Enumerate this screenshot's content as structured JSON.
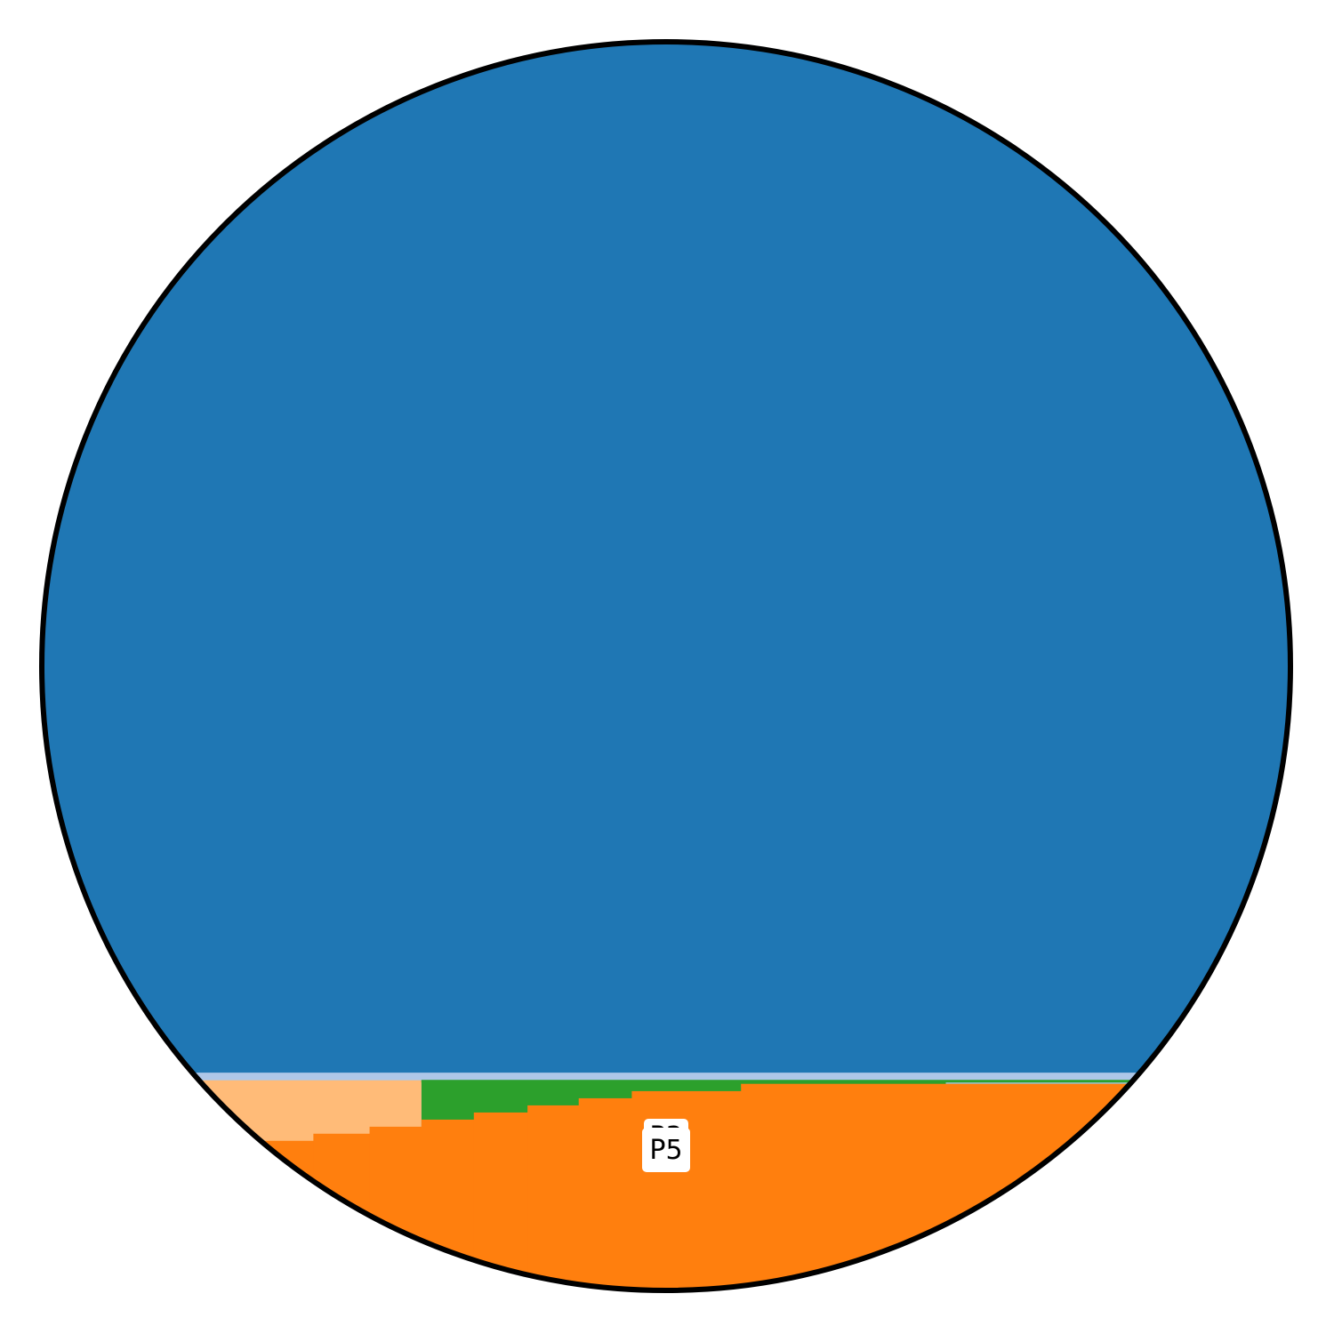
{
  "chart_data": {
    "type": "area",
    "title": "",
    "xlabel": "",
    "ylabel": "",
    "labels": {
      "behind": "P3",
      "front": "P5"
    },
    "colors": {
      "P1": "#1f77b4",
      "P2": "#aec7e8",
      "P3": "#2ca02c",
      "P4": "#ffbb78",
      "P5": "#ff7f0e",
      "outline": "#000000"
    },
    "fill_order": [
      "P5",
      "P4",
      "P3",
      "P2",
      "P1"
    ],
    "surfaces_top_down": [
      {
        "series": "P2",
        "level": 0.8256,
        "x_from": -1.0,
        "x_to": 1.0
      },
      {
        "series": "P3",
        "level": 0.8317,
        "x_from": -0.392,
        "x_to": 0.448
      },
      {
        "series": "P4",
        "level": 0.8317,
        "x_from": -1.0,
        "x_to": -0.392
      },
      {
        "series": "P5",
        "level": 0.8346,
        "x_from": 0.12,
        "x_to": 1.0
      }
    ],
    "step_profiles": {
      "P3": [
        {
          "x_from": -0.098,
          "x_to": 0.12,
          "level": 0.8375
        },
        {
          "x_from": 0.12,
          "x_to": 1.0,
          "level": 0.8346
        }
      ],
      "P5": [
        {
          "x_from": -1.0,
          "x_to": -0.565,
          "level": 0.8802
        },
        {
          "x_from": -0.565,
          "x_to": -0.475,
          "level": 0.8745
        },
        {
          "x_from": -0.475,
          "x_to": -0.392,
          "level": 0.8689
        },
        {
          "x_from": -0.392,
          "x_to": -0.308,
          "level": 0.8632
        },
        {
          "x_from": -0.308,
          "x_to": -0.222,
          "level": 0.8575
        },
        {
          "x_from": -0.222,
          "x_to": -0.14,
          "level": 0.8518
        },
        {
          "x_from": -0.14,
          "x_to": -0.055,
          "level": 0.8461
        },
        {
          "x_from": -0.055,
          "x_to": 0.12,
          "level": 0.8404
        },
        {
          "x_from": 0.12,
          "x_to": 1.0,
          "level": 0.8346
        }
      ]
    }
  }
}
